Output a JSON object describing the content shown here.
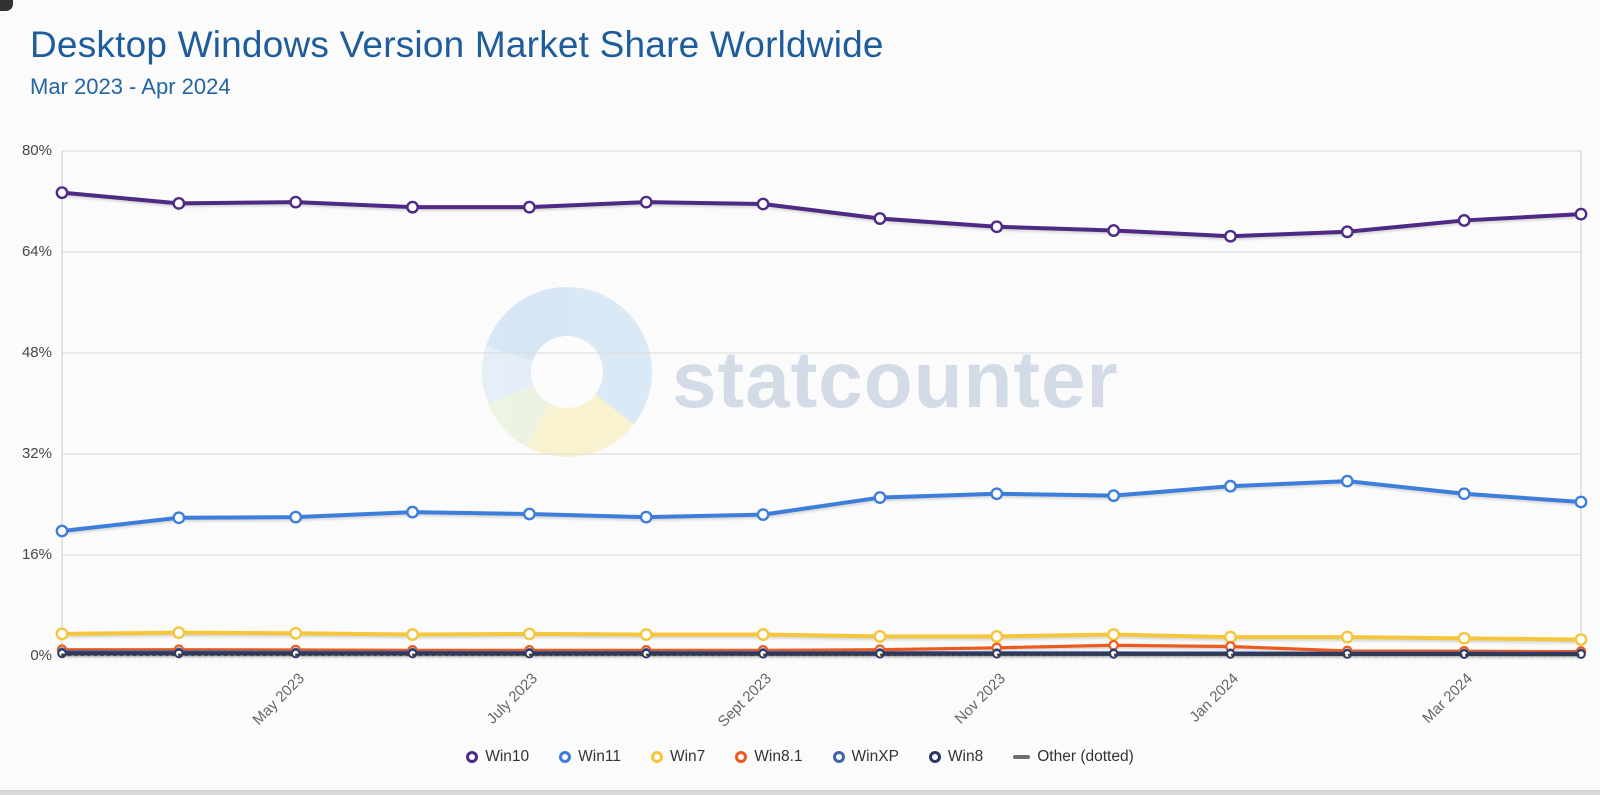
{
  "chart_data": {
    "type": "line",
    "title": "Desktop Windows Version Market Share Worldwide",
    "subtitle": "Mar 2023 - Apr 2024",
    "x": [
      "Mar 2023",
      "Apr 2023",
      "May 2023",
      "Jun 2023",
      "Jul 2023",
      "Aug 2023",
      "Sep 2023",
      "Oct 2023",
      "Nov 2023",
      "Dec 2023",
      "Jan 2024",
      "Feb 2024",
      "Mar 2024",
      "Apr 2024"
    ],
    "x_tick_labels": [
      "May 2023",
      "July 2023",
      "Sept 2023",
      "Nov 2023",
      "Jan 2024",
      "Mar 2024"
    ],
    "x_tick_indices": [
      2,
      4,
      6,
      8,
      10,
      12
    ],
    "y_ticks": [
      "0%",
      "16%",
      "32%",
      "48%",
      "64%",
      "80%"
    ],
    "ylim": [
      0,
      80
    ],
    "grid": true,
    "legend_position": "bottom",
    "series": [
      {
        "name": "Win10",
        "color": "#4e2a85",
        "style": "solid",
        "values": [
          73.4,
          71.7,
          71.9,
          71.1,
          71.1,
          71.9,
          71.6,
          69.3,
          68.0,
          67.4,
          66.5,
          67.2,
          69.0,
          70.0
        ]
      },
      {
        "name": "Win11",
        "color": "#3d7edb",
        "style": "solid",
        "values": [
          19.8,
          21.9,
          22.0,
          22.8,
          22.5,
          22.0,
          22.4,
          25.1,
          25.7,
          25.4,
          26.9,
          27.7,
          25.7,
          24.4
        ]
      },
      {
        "name": "Win7",
        "color": "#f5c63c",
        "style": "solid",
        "values": [
          3.5,
          3.7,
          3.6,
          3.4,
          3.5,
          3.4,
          3.4,
          3.1,
          3.1,
          3.4,
          3.0,
          3.0,
          2.8,
          2.6
        ]
      },
      {
        "name": "Win8.1",
        "color": "#ee5a1d",
        "style": "solid",
        "values": [
          1.0,
          1.0,
          0.95,
          0.9,
          0.9,
          0.9,
          0.9,
          1.0,
          1.3,
          1.7,
          1.5,
          0.8,
          0.75,
          0.7
        ]
      },
      {
        "name": "WinXP",
        "color": "#3a66a6",
        "style": "solid",
        "values": [
          0.7,
          0.68,
          0.65,
          0.62,
          0.6,
          0.6,
          0.58,
          0.56,
          0.55,
          0.54,
          0.52,
          0.5,
          0.5,
          0.48
        ]
      },
      {
        "name": "Win8",
        "color": "#2c3968",
        "style": "solid",
        "values": [
          0.42,
          0.41,
          0.4,
          0.39,
          0.38,
          0.37,
          0.36,
          0.35,
          0.35,
          0.34,
          0.33,
          0.32,
          0.31,
          0.3
        ]
      },
      {
        "name": "Other (dotted)",
        "color": "#3a3a3a",
        "style": "dotted",
        "values": [
          0.2,
          0.2,
          0.2,
          0.2,
          0.2,
          0.2,
          0.2,
          0.2,
          0.2,
          0.2,
          0.2,
          0.2,
          0.2,
          0.2
        ]
      }
    ]
  },
  "watermark": {
    "text": "statcounter",
    "text_color": "#9db2cb",
    "pie_colors": [
      "#d3e5f6",
      "#f8f1c6",
      "#e9f2dc",
      "#e0ecf8"
    ]
  },
  "colors": {
    "title": "#1e5c9b",
    "gridline": "#dadada",
    "axis_border": "#c8c8c8",
    "tick_label": "#474747",
    "x_label": "#666666"
  }
}
